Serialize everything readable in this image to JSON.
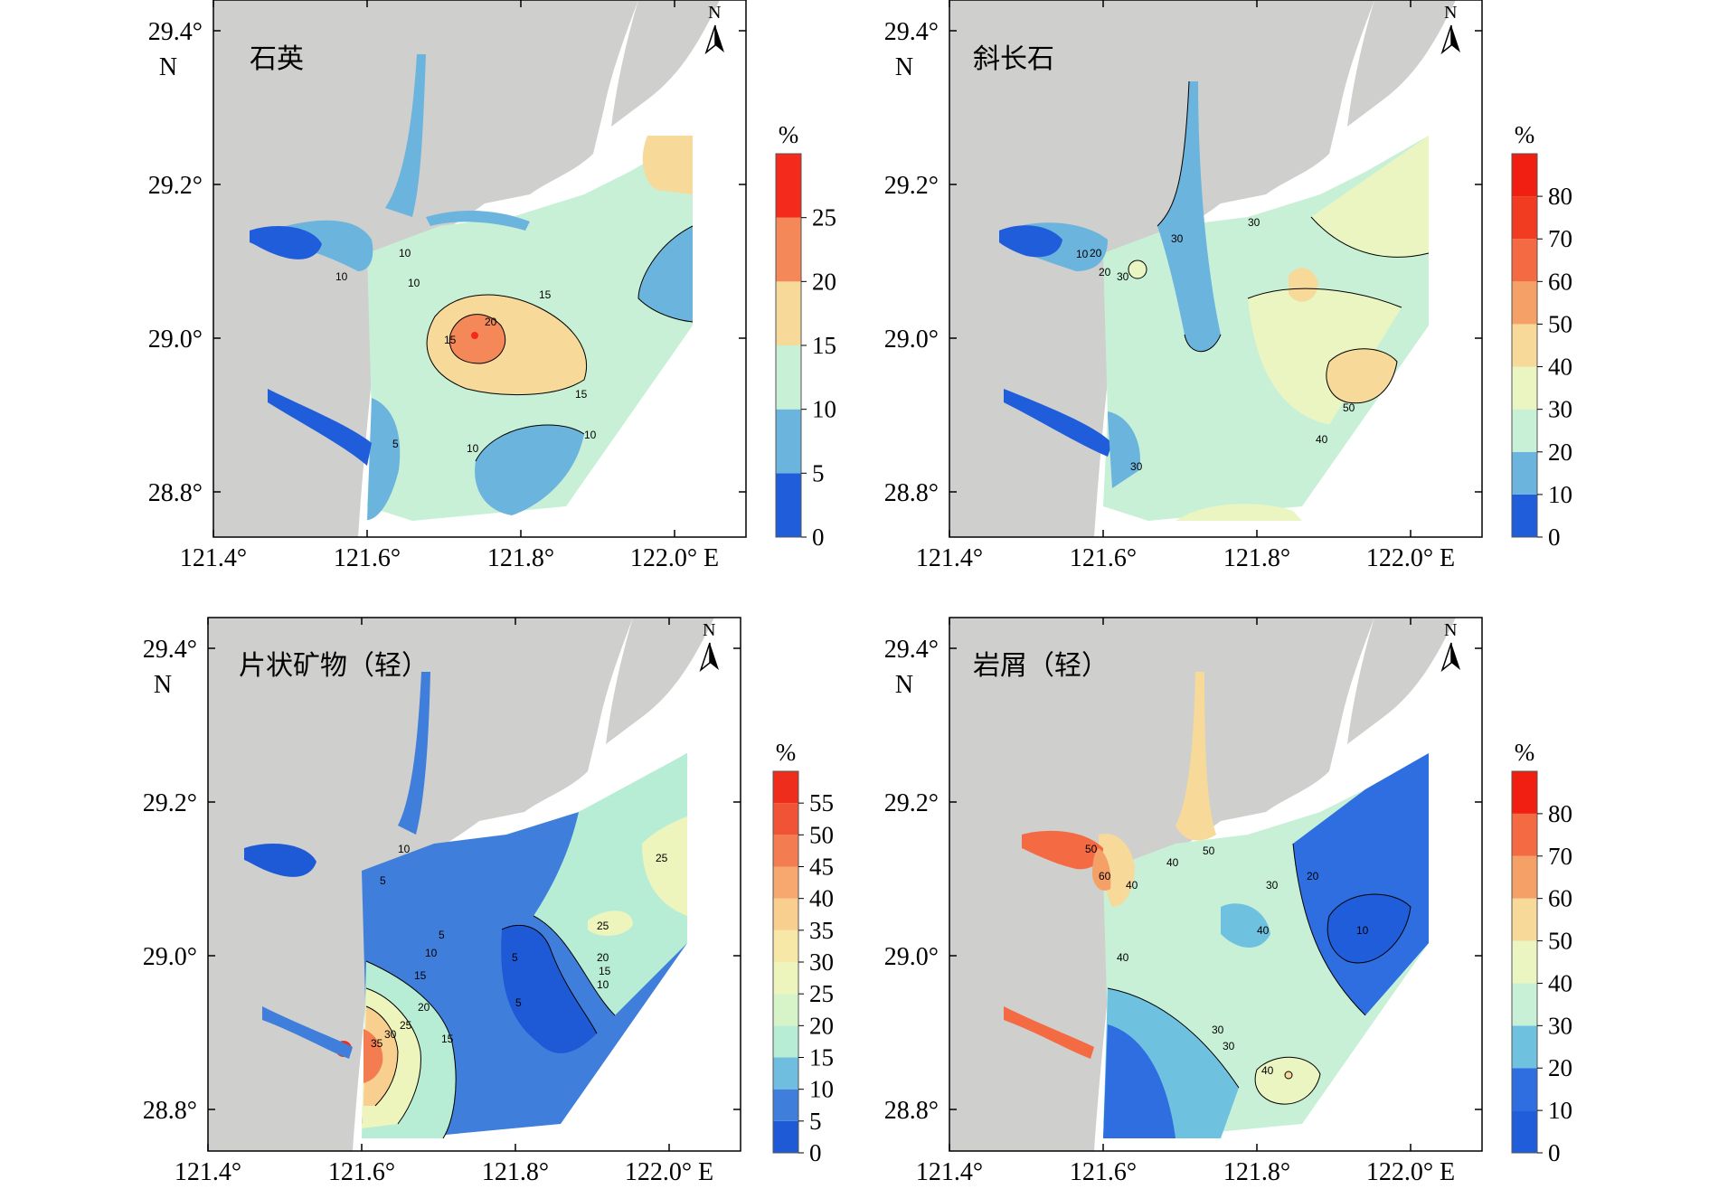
{
  "figure": {
    "lat_unit": "N",
    "lon_unit": "E",
    "north_label": "N",
    "lon_ticks": [
      "121.4°",
      "121.6°",
      "121.8°",
      "122.0°"
    ],
    "lat_ticks": [
      "29.4°",
      "29.2°",
      "29.0°",
      "28.8°"
    ],
    "colorbar_unit": "%",
    "land_color": "#cfcfcd",
    "panels": [
      {
        "title": "石英",
        "colorbar": {
          "labels": [
            "0",
            "5",
            "10",
            "15",
            "20",
            "25"
          ],
          "colors": [
            "#1f5ddb",
            "#6bb4dd",
            "#c8f0d6",
            "#f7d99a",
            "#f48858",
            "#f42b1c"
          ]
        },
        "contour_labels": [
          "10",
          "10",
          "15",
          "15",
          "20",
          "10",
          "15",
          "10",
          "5",
          "10"
        ]
      },
      {
        "title": "斜长石",
        "colorbar": {
          "labels": [
            "0",
            "10",
            "20",
            "30",
            "40",
            "50",
            "60",
            "70",
            "80"
          ],
          "colors": [
            "#1f5ddb",
            "#6bb4dd",
            "#c8f0d6",
            "#eaf5c2",
            "#f7d99a",
            "#f4a067",
            "#f36a43",
            "#f23c22",
            "#f01f12"
          ]
        },
        "contour_labels": [
          "10",
          "20",
          "30",
          "30",
          "30",
          "50",
          "40",
          "30",
          "20"
        ]
      },
      {
        "title": "片状矿物（轻）",
        "colorbar": {
          "labels": [
            "0",
            "5",
            "10",
            "15",
            "20",
            "25",
            "30",
            "35",
            "40",
            "45",
            "50",
            "55"
          ],
          "colors": [
            "#1e5ad6",
            "#3f7fdb",
            "#6fbee0",
            "#b7ecd5",
            "#d7f3c8",
            "#eef5bc",
            "#f7e8a8",
            "#f8cf8e",
            "#f6a86e",
            "#f37d51",
            "#f05335",
            "#ee2d1c"
          ]
        },
        "contour_labels": [
          "10",
          "5",
          "5",
          "10",
          "15",
          "20",
          "25",
          "30",
          "35",
          "15",
          "5",
          "5",
          "25",
          "20",
          "15",
          "10",
          "25"
        ]
      },
      {
        "title": "岩屑（轻）",
        "colorbar": {
          "labels": [
            "0",
            "10",
            "20",
            "30",
            "40",
            "50",
            "60",
            "70",
            "80"
          ],
          "colors": [
            "#1f5ddb",
            "#2e6ee0",
            "#6fc2df",
            "#c8f0d6",
            "#eaf5c2",
            "#f7d99a",
            "#f4a067",
            "#f36a43",
            "#f01f12"
          ]
        },
        "contour_labels": [
          "50",
          "60",
          "40",
          "40",
          "50",
          "40",
          "30",
          "20",
          "10",
          "30",
          "30",
          "40",
          "40"
        ]
      }
    ]
  }
}
